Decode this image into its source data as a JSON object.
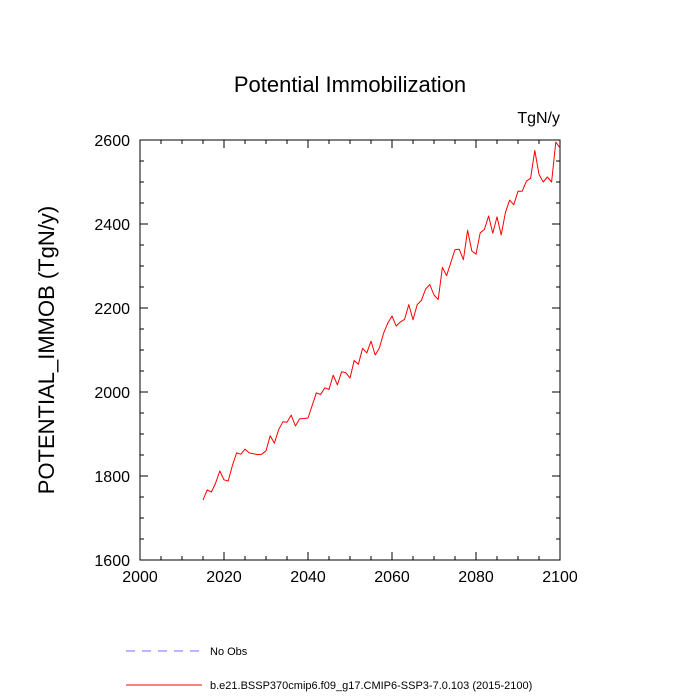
{
  "chart_data": {
    "type": "line",
    "title": "Potential Immobilization",
    "units_label": "TgN/y",
    "ylabel": "POTENTIAL_IMMOB  (TgN/y)",
    "xlabel": "",
    "xlim": [
      2000,
      2100
    ],
    "ylim": [
      1600,
      2600
    ],
    "x_ticks": [
      2000,
      2020,
      2040,
      2060,
      2080,
      2100
    ],
    "y_ticks": [
      1600,
      1800,
      2000,
      2200,
      2400,
      2600
    ],
    "x_minor_step": 5,
    "y_minor_step": 50,
    "grid": false,
    "legend": {
      "placement": "bottom",
      "entries": [
        {
          "label": "No Obs",
          "color": "#6f6fff",
          "dash": "dashed"
        },
        {
          "label": "b.e21.BSSP370cmip6.f09_g17.CMIP6-SSP3-7.0.103 (2015-2100)",
          "color": "#ff0000",
          "dash": "solid"
        }
      ]
    },
    "series": [
      {
        "name": "b.e21.BSSP370cmip6.f09_g17.CMIP6-SSP3-7.0.103 (2015-2100)",
        "color": "#ff0000",
        "x": [
          2015,
          2016,
          2017,
          2018,
          2019,
          2020,
          2021,
          2022,
          2023,
          2024,
          2025,
          2026,
          2027,
          2028,
          2029,
          2030,
          2031,
          2032,
          2033,
          2034,
          2035,
          2036,
          2037,
          2038,
          2039,
          2040,
          2041,
          2042,
          2043,
          2044,
          2045,
          2046,
          2047,
          2048,
          2049,
          2050,
          2051,
          2052,
          2053,
          2054,
          2055,
          2056,
          2057,
          2058,
          2059,
          2060,
          2061,
          2062,
          2063,
          2064,
          2065,
          2066,
          2067,
          2068,
          2069,
          2070,
          2071,
          2072,
          2073,
          2074,
          2075,
          2076,
          2077,
          2078,
          2079,
          2080,
          2081,
          2082,
          2083,
          2084,
          2085,
          2086,
          2087,
          2088,
          2089,
          2090,
          2091,
          2092,
          2093,
          2094,
          2095,
          2096,
          2097,
          2098,
          2099,
          2100
        ],
        "values": [
          1743,
          1767,
          1762,
          1783,
          1812,
          1791,
          1788,
          1825,
          1855,
          1852,
          1864,
          1855,
          1853,
          1851,
          1852,
          1860,
          1896,
          1878,
          1910,
          1929,
          1928,
          1945,
          1919,
          1936,
          1937,
          1938,
          1968,
          1998,
          1994,
          2010,
          2006,
          2040,
          2017,
          2048,
          2046,
          2033,
          2075,
          2066,
          2104,
          2093,
          2121,
          2088,
          2105,
          2140,
          2164,
          2181,
          2157,
          2167,
          2173,
          2208,
          2172,
          2208,
          2218,
          2245,
          2256,
          2231,
          2220,
          2297,
          2277,
          2308,
          2339,
          2340,
          2315,
          2385,
          2336,
          2328,
          2379,
          2387,
          2419,
          2378,
          2417,
          2374,
          2427,
          2457,
          2446,
          2478,
          2478,
          2502,
          2509,
          2575,
          2518,
          2500,
          2512,
          2500,
          2595,
          2581
        ]
      }
    ]
  }
}
